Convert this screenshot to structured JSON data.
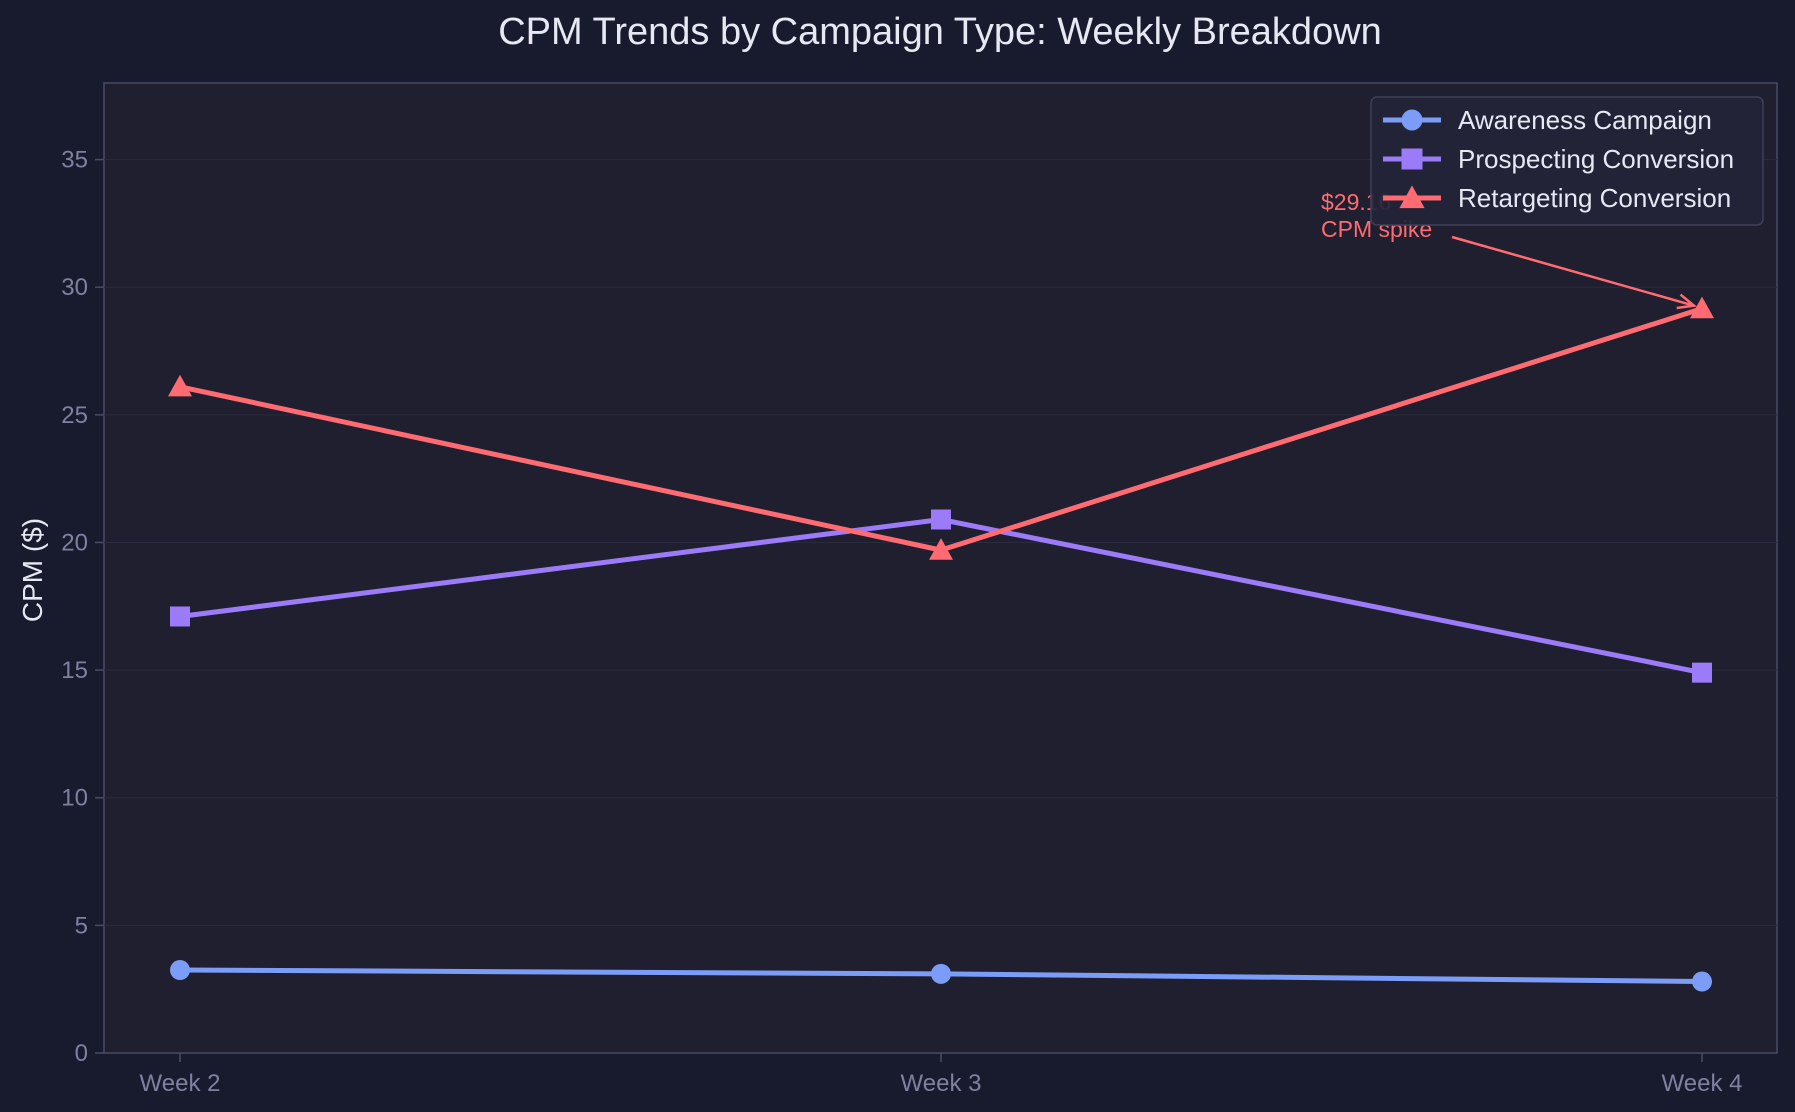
{
  "chart_data": {
    "type": "line",
    "title": "CPM Trends by Campaign Type: Weekly Breakdown",
    "xlabel": "",
    "ylabel": "CPM ($)",
    "categories": [
      "Week 2",
      "Week 3",
      "Week 4"
    ],
    "ylim": [
      0,
      38
    ],
    "yticks": [
      0,
      5,
      10,
      15,
      20,
      25,
      30,
      35
    ],
    "grid": true,
    "legend_position": "top-right",
    "series": [
      {
        "name": "Awareness Campaign",
        "values": [
          3.25,
          3.1,
          2.8
        ],
        "color": "#7b9cf7",
        "marker": "circle"
      },
      {
        "name": "Prospecting Conversion",
        "values": [
          17.1,
          20.9,
          14.9
        ],
        "color": "#9b7bf8",
        "marker": "square"
      },
      {
        "name": "Retargeting Conversion",
        "values": [
          26.1,
          19.7,
          29.16
        ],
        "color": "#ff6b70",
        "marker": "triangle"
      }
    ],
    "annotation": {
      "lines": [
        "$29.16",
        "CPM spike"
      ],
      "series_index": 2,
      "category_index": 2,
      "color": "#ff6b70"
    }
  },
  "colors": {
    "page_background": "#181a2e",
    "plot_background": "#1f1f30",
    "grid": "#2a2b3f",
    "axis": "#4a4c66"
  }
}
